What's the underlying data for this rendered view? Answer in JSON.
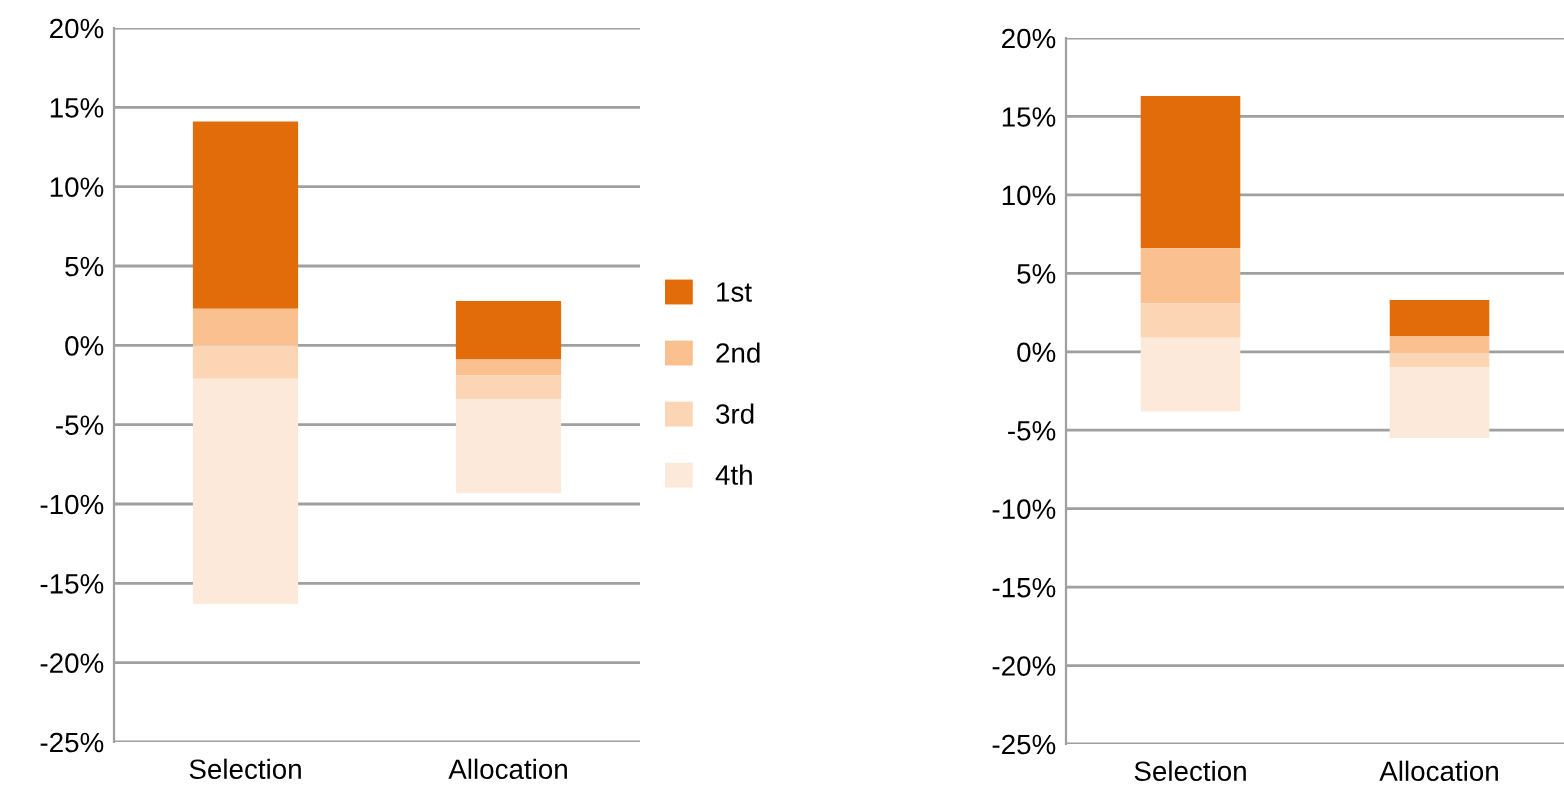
{
  "chart_data": [
    {
      "type": "bar",
      "categories": [
        "Selection",
        "Allocation"
      ],
      "series": [
        {
          "name": "1st",
          "color": "#e36c0a",
          "values": [
            11.8,
            3.7
          ],
          "base": [
            2.3,
            -0.9
          ]
        },
        {
          "name": "2nd",
          "color": "#fac090",
          "values": [
            2.3,
            1.0
          ],
          "base": [
            0,
            -1.9
          ]
        },
        {
          "name": "3rd",
          "color": "#fcd5b5",
          "values": [
            2.1,
            1.5
          ],
          "base": [
            -2.1,
            -3.4
          ]
        },
        {
          "name": "4th",
          "color": "#fde9d9",
          "values": [
            14.2,
            5.9
          ],
          "base": [
            -16.3,
            -9.3
          ]
        }
      ],
      "ylim": [
        -25,
        20
      ],
      "yticks": [
        {
          "value": -25,
          "label": "-25%"
        },
        {
          "value": -20,
          "label": "-20%"
        },
        {
          "value": -15,
          "label": "-15%"
        },
        {
          "value": -10,
          "label": "-10%"
        },
        {
          "value": -5,
          "label": "-5%"
        },
        {
          "value": 0,
          "label": "0%"
        },
        {
          "value": 5,
          "label": "5%"
        },
        {
          "value": 10,
          "label": "10%"
        },
        {
          "value": 15,
          "label": "15%"
        },
        {
          "value": 20,
          "label": "20%"
        }
      ],
      "grid": "y",
      "legend": "right"
    },
    {
      "type": "bar",
      "categories": [
        "Selection",
        "Allocation"
      ],
      "series": [
        {
          "color": "#e36c0a",
          "values": [
            9.7,
            2.3
          ],
          "base": [
            6.6,
            1.0
          ]
        },
        {
          "color": "#fac090",
          "values": [
            3.5,
            1.1
          ],
          "base": [
            3.1,
            -0.1
          ]
        },
        {
          "color": "#fcd5b5",
          "values": [
            2.2,
            0.9
          ],
          "base": [
            0.9,
            -1.0
          ]
        },
        {
          "color": "#fde9d9",
          "values": [
            4.7,
            4.5
          ],
          "base": [
            -3.8,
            -5.5
          ]
        }
      ],
      "ylim": [
        -25,
        20
      ],
      "yticks": [
        {
          "value": -25,
          "label": "-25%"
        },
        {
          "value": -20,
          "label": "-20%"
        },
        {
          "value": -15,
          "label": "-15%"
        },
        {
          "value": -10,
          "label": "-10%"
        },
        {
          "value": -5,
          "label": "-5%"
        },
        {
          "value": 0,
          "label": "0%"
        },
        {
          "value": 5,
          "label": "5%"
        },
        {
          "value": 10,
          "label": "10%"
        },
        {
          "value": 15,
          "label": "15%"
        },
        {
          "value": 20,
          "label": "20%"
        }
      ],
      "grid": "y"
    }
  ]
}
